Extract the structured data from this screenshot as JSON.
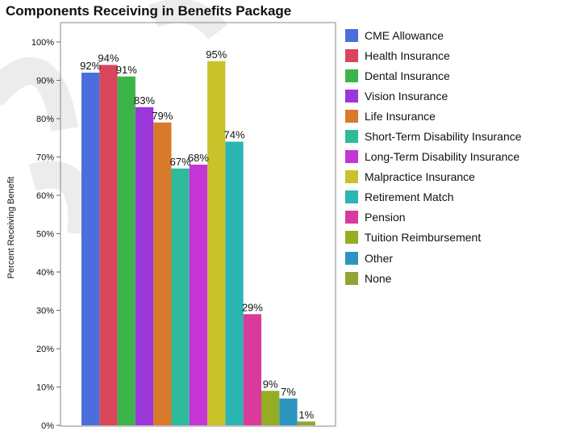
{
  "chart_data": {
    "type": "bar",
    "title": "Components Receiving in Benefits Package",
    "xlabel": "",
    "ylabel": "Percent Receiving Benefit",
    "ylim": [
      0,
      100
    ],
    "yticks": [
      "0%",
      "10%",
      "20%",
      "30%",
      "40%",
      "50%",
      "60%",
      "70%",
      "80%",
      "90%",
      "100%"
    ],
    "grid": false,
    "legend_position": "right",
    "series": [
      {
        "name": "CME Allowance",
        "value": 92,
        "label": "92%",
        "color": "#4a6fdc"
      },
      {
        "name": "Health Insurance",
        "value": 94,
        "label": "94%",
        "color": "#d9455a"
      },
      {
        "name": "Dental Insurance",
        "value": 91,
        "label": "91%",
        "color": "#3cb44a"
      },
      {
        "name": "Vision Insurance",
        "value": 83,
        "label": "83%",
        "color": "#9b36d9"
      },
      {
        "name": "Life Insurance",
        "value": 79,
        "label": "79%",
        "color": "#d8792c"
      },
      {
        "name": "Short-Term Disability Insurance",
        "value": 67,
        "label": "67%",
        "color": "#2dbb9b"
      },
      {
        "name": "Long-Term Disability Insurance",
        "value": 68,
        "label": "68%",
        "color": "#c534d6"
      },
      {
        "name": "Malpractice Insurance",
        "value": 95,
        "label": "95%",
        "color": "#c9c22a"
      },
      {
        "name": "Retirement Match",
        "value": 74,
        "label": "74%",
        "color": "#2bb5b5"
      },
      {
        "name": "Pension",
        "value": 29,
        "label": "29%",
        "color": "#d93a9c"
      },
      {
        "name": "Tuition Reimbursement",
        "value": 9,
        "label": "9%",
        "color": "#94ad24"
      },
      {
        "name": "Other",
        "value": 7,
        "label": "7%",
        "color": "#2b95c0"
      },
      {
        "name": "None",
        "value": 1,
        "label": "1%",
        "color": "#8fa634"
      }
    ]
  }
}
